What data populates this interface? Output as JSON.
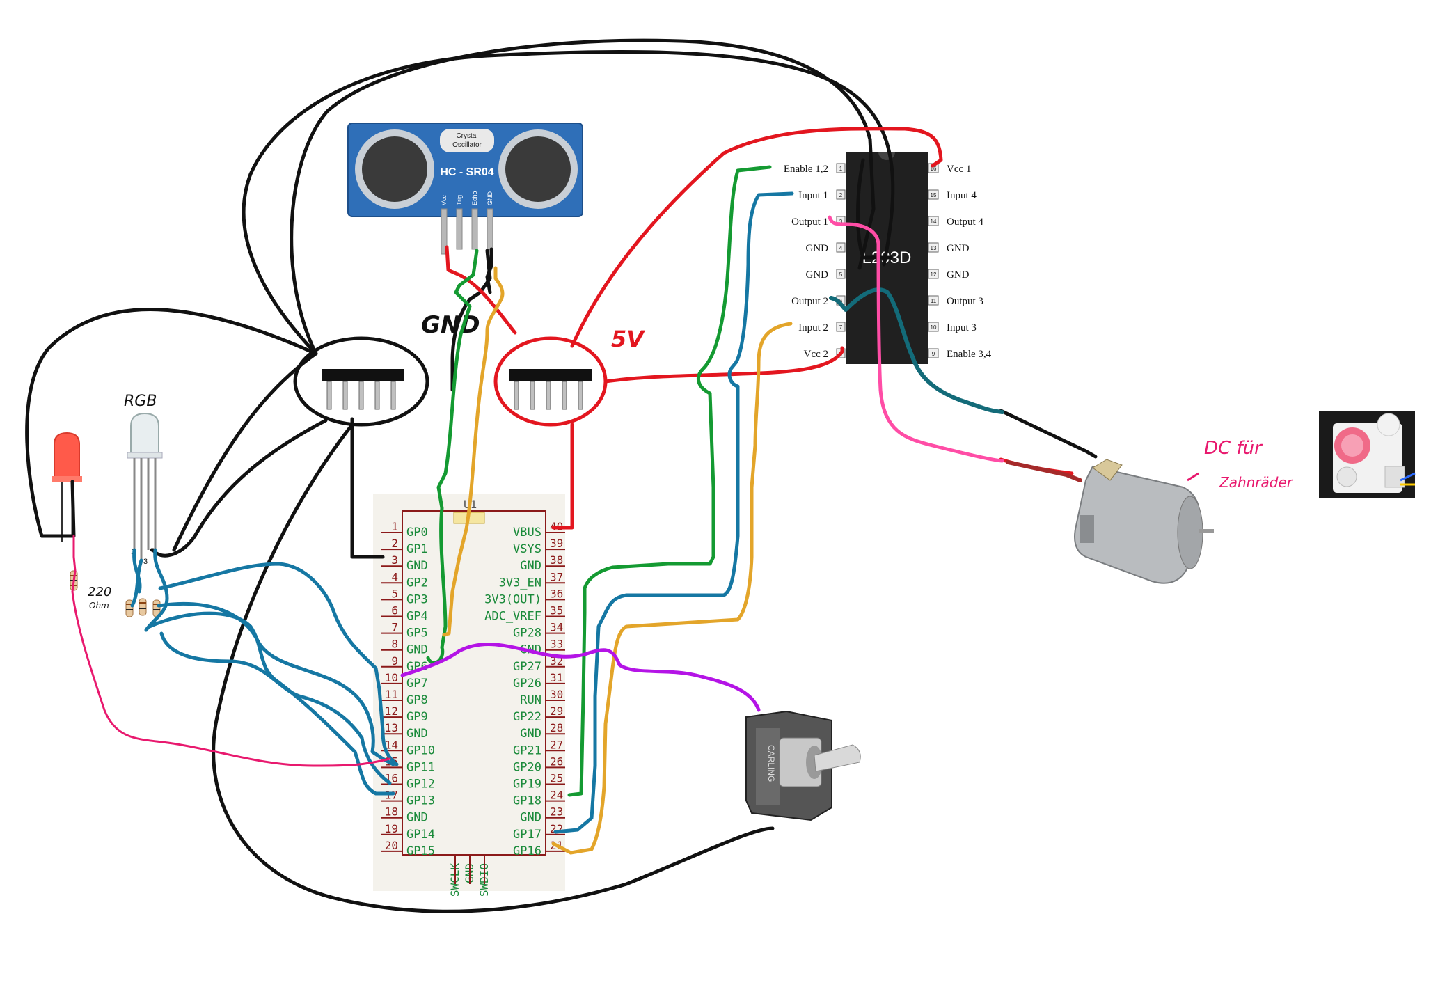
{
  "sensor": {
    "label_line1": "Crystal",
    "label_line2": "Oscillator",
    "name": "HC - SR04",
    "pins": [
      "Vcc",
      "Trig",
      "Echo",
      "GND"
    ]
  },
  "rails": {
    "gnd_label": "GND",
    "vcc_label": "5V"
  },
  "rgb_label": "RGB",
  "rgb_pins": [
    "1",
    "3",
    "4"
  ],
  "resistor_label_line1": "220",
  "resistor_label_line2": "Ohm",
  "pico": {
    "ref": "U1",
    "left_pins": [
      {
        "num": "1",
        "name": "GP0"
      },
      {
        "num": "2",
        "name": "GP1"
      },
      {
        "num": "3",
        "name": "GND"
      },
      {
        "num": "4",
        "name": "GP2"
      },
      {
        "num": "5",
        "name": "GP3"
      },
      {
        "num": "6",
        "name": "GP4"
      },
      {
        "num": "7",
        "name": "GP5"
      },
      {
        "num": "8",
        "name": "GND"
      },
      {
        "num": "9",
        "name": "GP6"
      },
      {
        "num": "10",
        "name": "GP7"
      },
      {
        "num": "11",
        "name": "GP8"
      },
      {
        "num": "12",
        "name": "GP9"
      },
      {
        "num": "13",
        "name": "GND"
      },
      {
        "num": "14",
        "name": "GP10"
      },
      {
        "num": "15",
        "name": "GP11"
      },
      {
        "num": "16",
        "name": "GP12"
      },
      {
        "num": "17",
        "name": "GP13"
      },
      {
        "num": "18",
        "name": "GND"
      },
      {
        "num": "19",
        "name": "GP14"
      },
      {
        "num": "20",
        "name": "GP15"
      }
    ],
    "right_pins": [
      {
        "num": "40",
        "name": "VBUS"
      },
      {
        "num": "39",
        "name": "VSYS"
      },
      {
        "num": "38",
        "name": "GND"
      },
      {
        "num": "37",
        "name": "3V3_EN"
      },
      {
        "num": "36",
        "name": "3V3(OUT)"
      },
      {
        "num": "35",
        "name": "ADC_VREF"
      },
      {
        "num": "34",
        "name": "GP28"
      },
      {
        "num": "33",
        "name": "GND"
      },
      {
        "num": "32",
        "name": "GP27"
      },
      {
        "num": "31",
        "name": "GP26"
      },
      {
        "num": "30",
        "name": "RUN"
      },
      {
        "num": "29",
        "name": "GP22"
      },
      {
        "num": "28",
        "name": "GND"
      },
      {
        "num": "27",
        "name": "GP21"
      },
      {
        "num": "26",
        "name": "GP20"
      },
      {
        "num": "25",
        "name": "GP19"
      },
      {
        "num": "24",
        "name": "GP18"
      },
      {
        "num": "23",
        "name": "GND"
      },
      {
        "num": "22",
        "name": "GP17"
      },
      {
        "num": "21",
        "name": "GP16"
      }
    ],
    "bottom_pins": [
      "SWCLK",
      "GND",
      "SWDIO"
    ]
  },
  "driver": {
    "name": "L293D",
    "left_pins": [
      {
        "num": "1",
        "name": "Enable 1,2"
      },
      {
        "num": "2",
        "name": "Input 1"
      },
      {
        "num": "3",
        "name": "Output 1"
      },
      {
        "num": "4",
        "name": "GND"
      },
      {
        "num": "5",
        "name": "GND"
      },
      {
        "num": "6",
        "name": "Output 2"
      },
      {
        "num": "7",
        "name": "Input 2"
      },
      {
        "num": "8",
        "name": "Vcc 2"
      }
    ],
    "right_pins": [
      {
        "num": "16",
        "name": "Vcc 1"
      },
      {
        "num": "15",
        "name": "Input 4"
      },
      {
        "num": "14",
        "name": "Output 4"
      },
      {
        "num": "13",
        "name": "GND"
      },
      {
        "num": "12",
        "name": "GND"
      },
      {
        "num": "11",
        "name": "Output 3"
      },
      {
        "num": "10",
        "name": "Input 3"
      },
      {
        "num": "9",
        "name": "Enable 3,4"
      }
    ]
  },
  "motor_note_line1": "DC für",
  "motor_note_line2": "Zahnräder",
  "switch_brand": "CARLING",
  "colors": {
    "black": "#111111",
    "red": "#e3161f",
    "green": "#149a32",
    "blue": "#1577a3",
    "teal": "#136b79",
    "gold": "#e3a52a",
    "purple": "#b414e6",
    "pink": "#ff4da6",
    "magenta": "#e8196e",
    "sensor_blue": "#2f6fb8",
    "schematic_red": "#8b1a1a"
  }
}
